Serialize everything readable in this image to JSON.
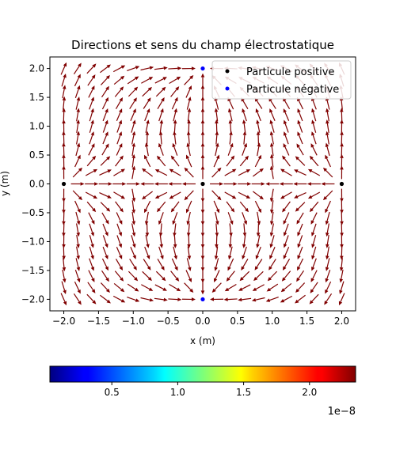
{
  "chart_data": {
    "type": "quiver",
    "title": "Directions et sens du champ électrostatique",
    "xlabel": "x (m)",
    "ylabel": "y (m)",
    "xlim": [
      -2.2,
      2.2
    ],
    "ylim": [
      -2.2,
      2.2
    ],
    "xticks": [
      -2.0,
      -1.5,
      -1.0,
      -0.5,
      0.0,
      0.5,
      1.0,
      1.5,
      2.0
    ],
    "xtick_labels": [
      "−2.0",
      "−1.5",
      "−1.0",
      "−0.5",
      "0.0",
      "0.5",
      "1.0",
      "1.5",
      "2.0"
    ],
    "yticks": [
      -2.0,
      -1.5,
      -1.0,
      -0.5,
      0.0,
      0.5,
      1.0,
      1.5,
      2.0
    ],
    "ytick_labels": [
      "−2.0",
      "−1.5",
      "−1.0",
      "−0.5",
      "0.0",
      "0.5",
      "1.0",
      "1.5",
      "2.0"
    ],
    "grid": false,
    "legend_position": "top-right",
    "legend": [
      {
        "label": "Particule positive",
        "color": "#000000",
        "marker": "circle"
      },
      {
        "label": "Particule négative",
        "color": "#0000ff",
        "marker": "circle"
      }
    ],
    "particles": [
      {
        "x": -2.0,
        "y": 0.0,
        "charge": "positive",
        "color": "#000000"
      },
      {
        "x": 0.0,
        "y": 0.0,
        "charge": "positive",
        "color": "#000000"
      },
      {
        "x": 2.0,
        "y": 0.0,
        "charge": "positive",
        "color": "#000000"
      },
      {
        "x": 0.0,
        "y": 2.0,
        "charge": "negative",
        "color": "#0000ff"
      },
      {
        "x": 0.0,
        "y": -2.0,
        "charge": "negative",
        "color": "#0000ff"
      }
    ],
    "grid_points": {
      "x_start": -2.0,
      "x_end": 2.0,
      "y_start": -2.0,
      "y_end": 2.0,
      "count": 21
    },
    "colorbar": {
      "colormap": "jet",
      "orientation": "horizontal",
      "range": [
        3e-10,
        2.35e-08
      ],
      "ticks": [
        0.5,
        1.0,
        1.5,
        2.0
      ],
      "tick_labels": [
        "0.5",
        "1.0",
        "1.5",
        "2.0"
      ],
      "scale_label": "1e−8"
    }
  }
}
